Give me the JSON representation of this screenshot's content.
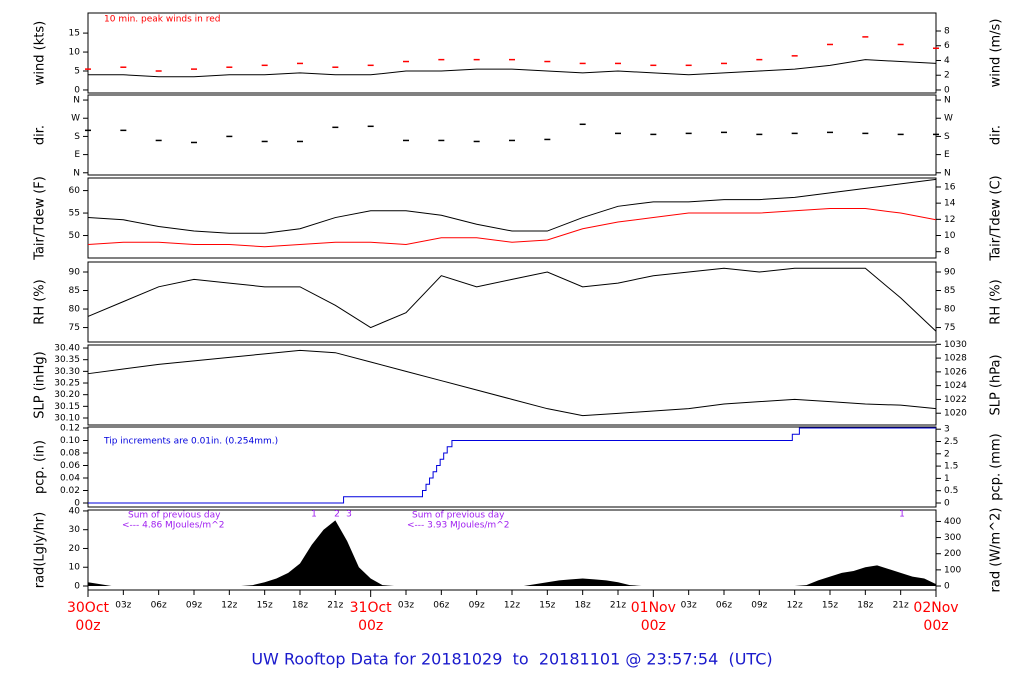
{
  "chart_data": [
    {
      "type": "line",
      "ylabel": "wind (kts)",
      "y2label": "wind (m/s)",
      "annotations": [
        "10 min. peak winds in red"
      ],
      "annotation_color": "#ff0000",
      "xlim": [
        0,
        72
      ],
      "ylim": [
        -0.8,
        20.3
      ],
      "yticks": [
        0,
        5,
        10,
        15
      ],
      "y2lim": [
        -0.41,
        10.44
      ],
      "y2ticks": [
        0,
        2,
        4,
        6,
        8
      ],
      "x": [
        0,
        3,
        6,
        9,
        12,
        15,
        18,
        21,
        24,
        27,
        30,
        33,
        36,
        39,
        42,
        45,
        48,
        51,
        54,
        57,
        60,
        63,
        66,
        69,
        72
      ],
      "series": [
        {
          "color": "#000000",
          "marker": "line",
          "values": [
            4,
            4,
            3.5,
            3.5,
            4,
            4,
            4.5,
            4,
            4,
            5,
            5,
            5.5,
            5.5,
            5,
            4.5,
            5,
            4.5,
            4,
            4.5,
            5,
            5.5,
            6.5,
            8,
            7.5,
            7
          ]
        },
        {
          "color": "#ff0000",
          "marker": "dash",
          "values": [
            5.5,
            6,
            5,
            5.5,
            6,
            6.5,
            7,
            6,
            6.5,
            7.5,
            8,
            8,
            8,
            7.5,
            7,
            7,
            6.5,
            6.5,
            7,
            8,
            9,
            12,
            14,
            12,
            11
          ]
        }
      ]
    },
    {
      "type": "scatter",
      "ylabel": "dir.",
      "y2label": "dir.",
      "xlim": [
        0,
        72
      ],
      "ylim": [
        -11,
        385
      ],
      "yticks": [
        {
          "value": 0,
          "label": "N"
        },
        {
          "value": 90,
          "label": "E"
        },
        {
          "value": 180,
          "label": "S"
        },
        {
          "value": 270,
          "label": "W"
        },
        {
          "value": 360,
          "label": "N"
        }
      ],
      "y2lim": [
        -11,
        385
      ],
      "y2ticks": [
        {
          "value": 0,
          "label": "N"
        },
        {
          "value": 90,
          "label": "E"
        },
        {
          "value": 180,
          "label": "S"
        },
        {
          "value": 270,
          "label": "W"
        },
        {
          "value": 360,
          "label": "N"
        }
      ],
      "x": [
        0,
        3,
        6,
        9,
        12,
        15,
        18,
        21,
        24,
        27,
        30,
        33,
        36,
        39,
        42,
        45,
        48,
        51,
        54,
        57,
        60,
        63,
        66,
        69,
        72
      ],
      "series": [
        {
          "color": "#000000",
          "marker": "dash",
          "values": [
            210,
            210,
            160,
            150,
            180,
            155,
            155,
            225,
            230,
            160,
            160,
            155,
            160,
            165,
            240,
            195,
            190,
            195,
            200,
            190,
            195,
            200,
            195,
            190,
            190
          ]
        }
      ]
    },
    {
      "type": "line",
      "ylabel": "Tair/Tdew (F)",
      "y2label": "Tair/Tdew (C)",
      "xlim": [
        0,
        72
      ],
      "ylim": [
        45,
        62.8
      ],
      "yticks": [
        50,
        55,
        60
      ],
      "y2lim": [
        7.22,
        17.11
      ],
      "y2ticks": [
        8,
        10,
        12,
        14,
        16
      ],
      "x": [
        0,
        3,
        6,
        9,
        12,
        15,
        18,
        21,
        24,
        27,
        30,
        33,
        36,
        39,
        42,
        45,
        48,
        51,
        54,
        57,
        60,
        63,
        66,
        69,
        72
      ],
      "series": [
        {
          "color": "#000000",
          "marker": "line",
          "values": [
            54,
            53.5,
            52,
            51,
            50.5,
            50.5,
            51.5,
            54,
            55.5,
            55.5,
            54.5,
            52.5,
            51,
            51,
            54,
            56.5,
            57.5,
            57.5,
            58,
            58,
            58.5,
            59.5,
            60.5,
            61.5,
            62.5
          ]
        },
        {
          "color": "#ff0000",
          "marker": "line",
          "values": [
            48,
            48.5,
            48.5,
            48,
            48,
            47.5,
            48,
            48.5,
            48.5,
            48,
            49.5,
            49.5,
            48.5,
            49,
            51.5,
            53,
            54,
            55,
            55,
            55,
            55.5,
            56,
            56,
            55,
            53.5
          ]
        }
      ]
    },
    {
      "type": "line",
      "ylabel": "RH (%)",
      "y2label": "RH (%)",
      "xlim": [
        0,
        72
      ],
      "ylim": [
        71.1,
        92.7
      ],
      "yticks": [
        75,
        80,
        85,
        90
      ],
      "y2lim": [
        71.1,
        92.7
      ],
      "y2ticks": [
        75,
        80,
        85,
        90
      ],
      "x": [
        0,
        3,
        6,
        9,
        12,
        15,
        18,
        21,
        24,
        27,
        30,
        33,
        36,
        39,
        42,
        45,
        48,
        51,
        54,
        57,
        60,
        63,
        66,
        69,
        72
      ],
      "series": [
        {
          "color": "#000000",
          "marker": "line",
          "values": [
            78,
            82,
            86,
            88,
            87,
            86,
            86,
            81,
            75,
            79,
            89,
            86,
            88,
            90,
            86,
            87,
            89,
            90,
            91,
            90,
            91,
            91,
            91,
            83,
            74
          ]
        }
      ]
    },
    {
      "type": "line",
      "ylabel": "SLP (inHg)",
      "y2label": "SLP (hPa)",
      "xlim": [
        0,
        72
      ],
      "ylim": [
        30.07,
        30.413
      ],
      "yticks": [
        {
          "value": 30.1,
          "label": "30.10"
        },
        30.15,
        {
          "value": 30.2,
          "label": "30.20"
        },
        30.25,
        {
          "value": 30.3,
          "label": "30.30"
        },
        30.35,
        {
          "value": 30.4,
          "label": "30.40"
        }
      ],
      "y2lim": [
        1018.29,
        1029.9
      ],
      "y2ticks": [
        1020,
        1022,
        1024,
        1026,
        1028,
        1030
      ],
      "x": [
        0,
        3,
        6,
        9,
        12,
        15,
        18,
        21,
        24,
        27,
        30,
        33,
        36,
        39,
        42,
        45,
        48,
        51,
        54,
        57,
        60,
        63,
        66,
        69,
        72
      ],
      "series": [
        {
          "color": "#000000",
          "marker": "line",
          "values": [
            30.29,
            30.31,
            30.33,
            30.345,
            30.36,
            30.375,
            30.39,
            30.38,
            30.34,
            30.3,
            30.26,
            30.22,
            30.18,
            30.14,
            30.11,
            30.12,
            30.13,
            30.14,
            30.16,
            30.17,
            30.18,
            30.17,
            30.16,
            30.155,
            30.14
          ]
        }
      ]
    },
    {
      "type": "step",
      "ylabel": "pcp. (in)",
      "y2label": "pcp. (mm)",
      "annotations": [
        "Tip increments are 0.01in. (0.254mm.)"
      ],
      "annotation_color": "#0000dd",
      "xlim": [
        0,
        72
      ],
      "ylim": [
        -0.0064,
        0.1216
      ],
      "yticks": [
        0,
        0.02,
        0.04,
        0.06,
        0.08,
        {
          "value": 0.1,
          "label": "0.10"
        },
        0.12
      ],
      "y2lim": [
        -0.163,
        3.089
      ],
      "y2ticks": [
        0,
        0.5,
        1,
        1.5,
        2,
        2.5,
        3
      ],
      "x": [
        0,
        21.7,
        28.4,
        28.7,
        29,
        29.3,
        29.6,
        29.9,
        30.2,
        30.5,
        30.9,
        59.8,
        60.4,
        72
      ],
      "series": [
        {
          "color": "#0000dd",
          "marker": "step",
          "values": [
            0,
            0.01,
            0.02,
            0.03,
            0.04,
            0.05,
            0.06,
            0.07,
            0.08,
            0.09,
            0.1,
            0.11,
            0.12,
            0.12
          ]
        }
      ]
    },
    {
      "type": "area",
      "ylabel": "rad(Lgly/hr)",
      "y2label": "rad (W/m^2)",
      "annotations": [
        "Sum of previous day",
        "<--- 4.86 MJoules/m^2",
        "Sum of previous day",
        "<--- 3.93 MJoules/m^2",
        "1",
        "2",
        "3",
        "1"
      ],
      "annotation_color": "#a020f0",
      "xlim": [
        0,
        72
      ],
      "ylim": [
        -2.13,
        40.5
      ],
      "yticks": [
        0,
        10,
        20,
        30,
        40
      ],
      "y2lim": [
        -24.8,
        471
      ],
      "y2ticks": [
        0,
        100,
        200,
        300,
        400
      ],
      "x": [
        0,
        1,
        2,
        3,
        4,
        5,
        6,
        7,
        8,
        9,
        10,
        11,
        12,
        13,
        14,
        15,
        16,
        17,
        18,
        19,
        20,
        21,
        22,
        23,
        24,
        25,
        26,
        27,
        28,
        29,
        30,
        31,
        32,
        33,
        34,
        35,
        36,
        37,
        38,
        39,
        40,
        41,
        42,
        43,
        44,
        45,
        46,
        47,
        48,
        49,
        50,
        51,
        52,
        53,
        54,
        55,
        56,
        57,
        58,
        59,
        60,
        61,
        62,
        63,
        64,
        65,
        66,
        67,
        68,
        69,
        70,
        71,
        72
      ],
      "series": [
        {
          "color": "#000000",
          "marker": "area",
          "values": [
            2,
            1,
            0,
            0,
            0,
            0,
            0,
            0,
            0,
            0,
            0,
            0,
            0,
            0,
            0.5,
            2,
            4,
            7,
            12,
            22,
            30,
            35,
            24,
            10,
            4,
            0.5,
            0,
            0,
            0,
            0,
            0,
            0,
            0,
            0,
            0,
            0,
            0,
            0,
            1,
            2,
            3,
            3.5,
            4,
            3.5,
            3,
            2,
            0.5,
            0,
            0,
            0,
            0,
            0,
            0,
            0,
            0,
            0,
            0,
            0,
            0,
            0,
            0,
            0.5,
            3,
            5,
            7,
            8,
            10,
            11,
            9,
            7,
            5,
            4,
            1
          ]
        }
      ]
    }
  ],
  "time_axis": {
    "xlim": [
      0,
      72
    ],
    "xticks": [
      {
        "value": 3,
        "label": "03z"
      },
      {
        "value": 6,
        "label": "06z"
      },
      {
        "value": 9,
        "label": "09z"
      },
      {
        "value": 12,
        "label": "12z"
      },
      {
        "value": 15,
        "label": "15z"
      },
      {
        "value": 18,
        "label": "18z"
      },
      {
        "value": 21,
        "label": "21z"
      },
      {
        "value": 27,
        "label": "03z"
      },
      {
        "value": 30,
        "label": "06z"
      },
      {
        "value": 33,
        "label": "09z"
      },
      {
        "value": 36,
        "label": "12z"
      },
      {
        "value": 39,
        "label": "15z"
      },
      {
        "value": 42,
        "label": "18z"
      },
      {
        "value": 45,
        "label": "21z"
      },
      {
        "value": 51,
        "label": "03z"
      },
      {
        "value": 54,
        "label": "06z"
      },
      {
        "value": 57,
        "label": "09z"
      },
      {
        "value": 60,
        "label": "12z"
      },
      {
        "value": 63,
        "label": "15z"
      },
      {
        "value": 66,
        "label": "18z"
      },
      {
        "value": 69,
        "label": "21z"
      }
    ],
    "day_labels": [
      {
        "value": 0,
        "date": "30Oct",
        "hour": "00z"
      },
      {
        "value": 24,
        "date": "31Oct",
        "hour": "00z"
      },
      {
        "value": 48,
        "date": "01Nov",
        "hour": "00z"
      },
      {
        "value": 72,
        "date": "02Nov",
        "hour": "00z"
      }
    ]
  },
  "footer": "UW Rooftop Data for 20181029  to  20181101 @ 23:57:54  (UTC)"
}
